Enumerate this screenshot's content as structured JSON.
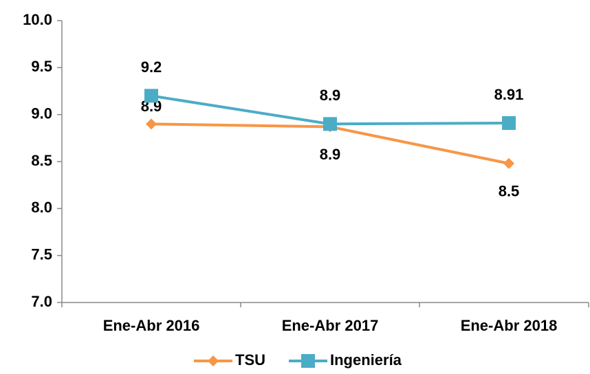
{
  "chart_data": {
    "type": "line",
    "categories": [
      "Ene-Abr 2016",
      "Ene-Abr 2017",
      "Ene-Abr 2018"
    ],
    "series": [
      {
        "name": "TSU",
        "color": "#f79646",
        "marker": "diamond",
        "values": [
          8.9,
          8.87,
          8.48
        ],
        "value_labels": [
          "8.9",
          "8.9",
          "8.5"
        ]
      },
      {
        "name": "Ingeniería",
        "color": "#4bacc6",
        "marker": "square",
        "values": [
          9.2,
          8.9,
          8.91
        ]
      }
    ],
    "ylim": [
      7.0,
      10.0
    ],
    "yticks": [
      {
        "value": 7.0,
        "label": "7.0"
      },
      {
        "value": 7.5,
        "label": "7.5"
      },
      {
        "value": 8.0,
        "label": "8.0"
      },
      {
        "value": 8.5,
        "label": "8.5"
      },
      {
        "value": 9.0,
        "label": "9.0"
      },
      {
        "value": 9.5,
        "label": "9.5"
      },
      {
        "value": 10.0,
        "label": "10.0"
      }
    ],
    "grid": false,
    "legend": "bottom"
  }
}
